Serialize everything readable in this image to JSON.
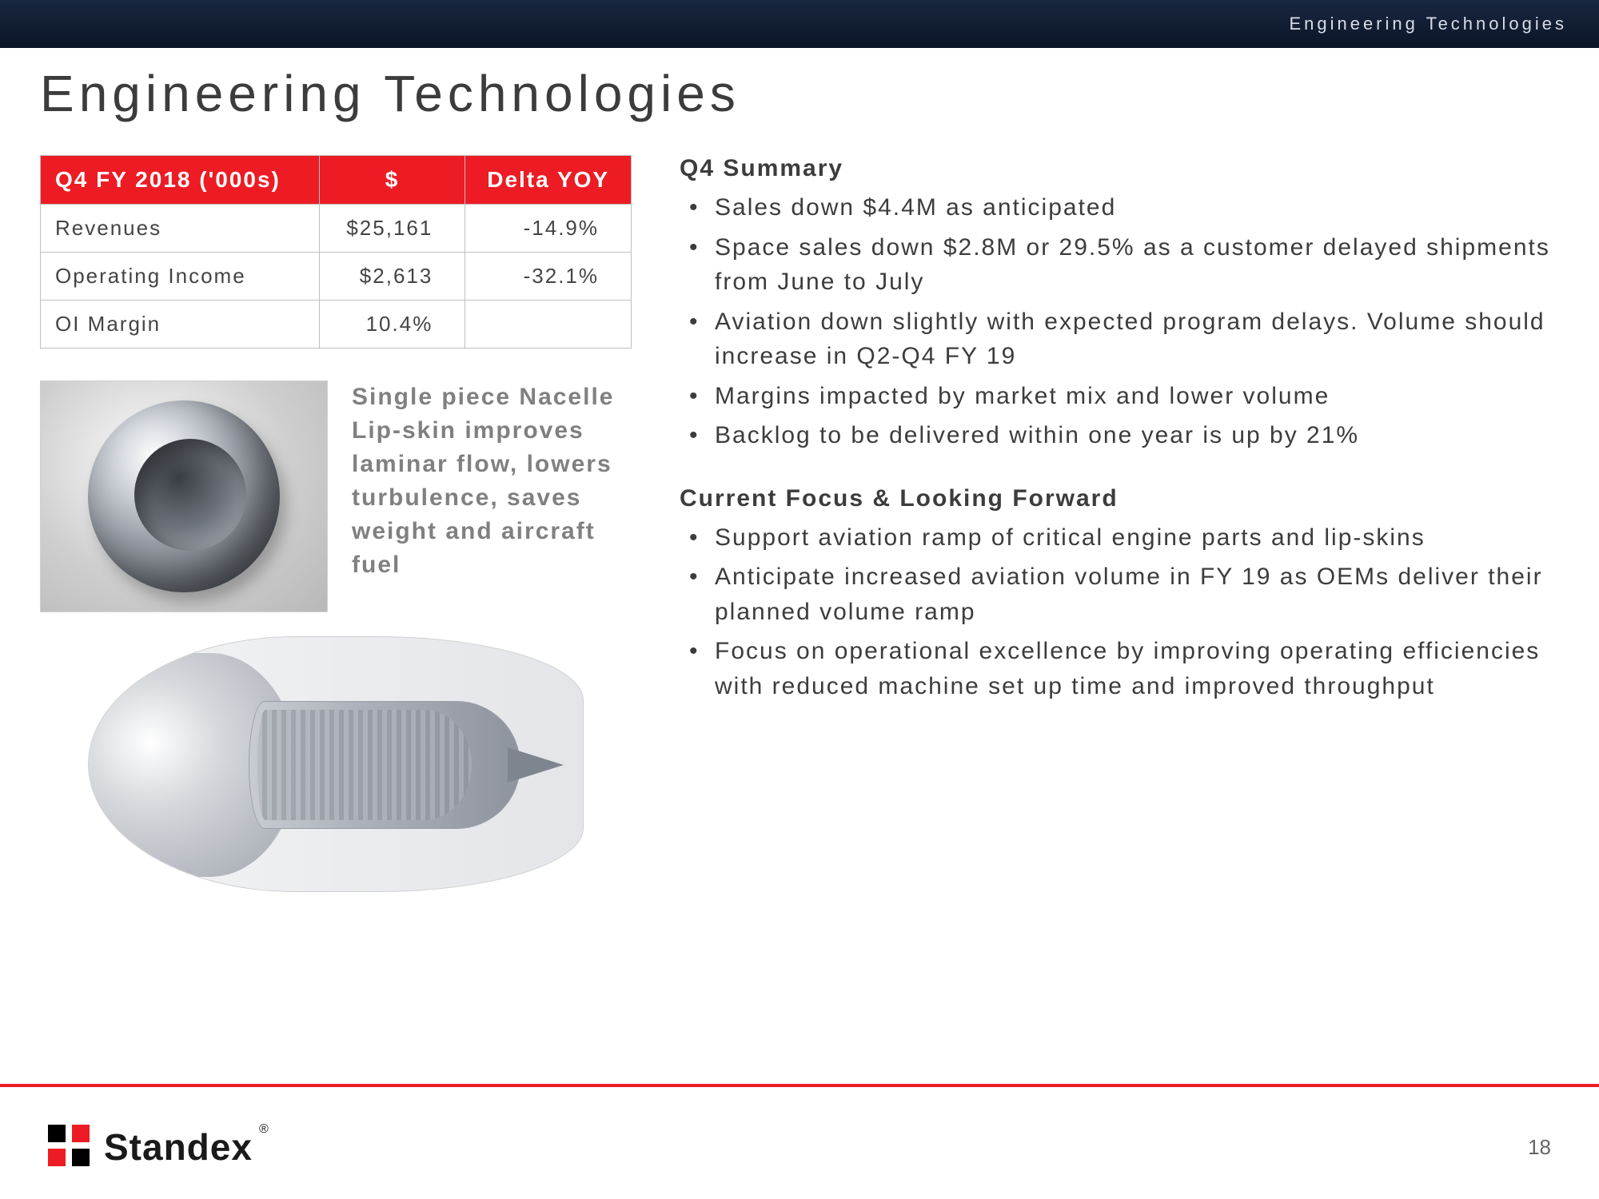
{
  "header": {
    "section_label": "Engineering Technologies"
  },
  "title": "Engineering Technologies",
  "table": {
    "headers": {
      "period": "Q4 FY 2018 ('000s)",
      "amount": "$",
      "delta": "Delta YOY"
    },
    "rows": [
      {
        "label": "Revenues",
        "amount": "$25,161",
        "delta": "-14.9%"
      },
      {
        "label": "Operating Income",
        "amount": "$2,613",
        "delta": "-32.1%"
      },
      {
        "label": "OI Margin",
        "amount": "10.4%",
        "delta": ""
      }
    ]
  },
  "nacelle_caption": "Single piece Nacelle Lip-skin improves laminar flow, lowers turbulence, saves weight and aircraft fuel",
  "summary": {
    "heading": "Q4 Summary",
    "items": [
      "Sales down $4.4M as anticipated",
      "Space sales down $2.8M or 29.5% as a customer delayed shipments from June to July",
      "Aviation down slightly with expected program delays. Volume should increase in Q2-Q4 FY 19",
      "Margins impacted by market mix and lower volume",
      "Backlog to be delivered within one year is up by 21%"
    ]
  },
  "focus": {
    "heading": "Current Focus & Looking Forward",
    "items": [
      "Support aviation ramp of critical engine parts and lip-skins",
      "Anticipate increased aviation volume in FY 19 as OEMs deliver their planned volume ramp",
      "Focus on operational excellence by improving operating efficiencies with reduced machine set up time and improved throughput"
    ]
  },
  "footer": {
    "brand": "Standex",
    "page_number": "18"
  },
  "colors": {
    "accent_red": "#ed1c24",
    "header_band": "#0f1e36",
    "text": "#3c3c3c",
    "muted": "#808080"
  }
}
